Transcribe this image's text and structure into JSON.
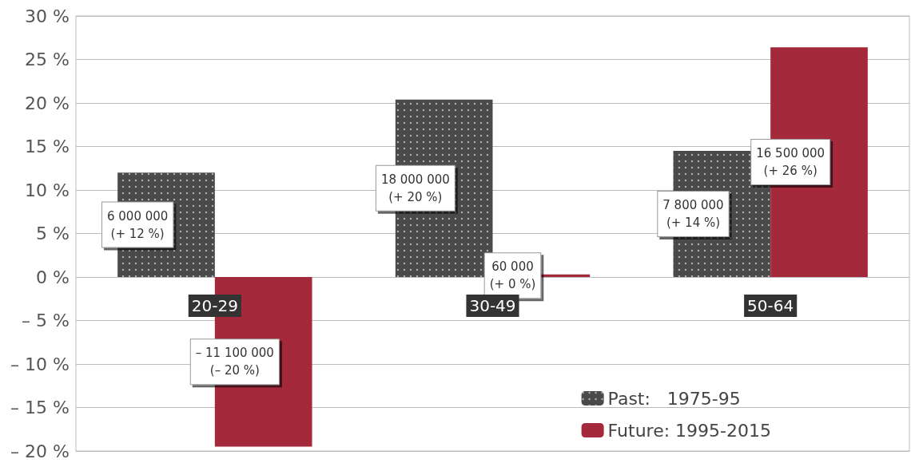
{
  "chart_data": {
    "type": "bar",
    "categories": [
      "20-29",
      "30-49",
      "50-64"
    ],
    "series": [
      {
        "name": "Past:   1975-95",
        "color": "#4a4a4a",
        "values": [
          12,
          20.4,
          14.5
        ],
        "value_labels": [
          "6 000 000\n(+ 12 %)",
          "18 000 000\n(+ 20 %)",
          "7 800 000\n(+ 14 %)"
        ]
      },
      {
        "name": "Future: 1995-2015",
        "color": "#a3293b",
        "values": [
          -19.5,
          0.3,
          26.4
        ],
        "value_labels": [
          "– 11 100 000\n(– 20 %)",
          "60 000\n(+ 0 %)",
          "16 500 000\n(+ 26 %)"
        ]
      }
    ],
    "ylim": [
      -20,
      30
    ],
    "yticks": [
      {
        "value": -20,
        "label": "– 20 %"
      },
      {
        "value": -15,
        "label": "– 15 %"
      },
      {
        "value": -10,
        "label": "– 10 %"
      },
      {
        "value": -5,
        "label": "– 5 %"
      },
      {
        "value": 0,
        "label": "0 %"
      },
      {
        "value": 5,
        "label": "5 %"
      },
      {
        "value": 10,
        "label": "10 %"
      },
      {
        "value": 15,
        "label": "15 %"
      },
      {
        "value": 20,
        "label": "20 %"
      },
      {
        "value": 25,
        "label": "25 %"
      },
      {
        "value": 30,
        "label": "30 %"
      }
    ],
    "grid": "y",
    "legend": "bottom right"
  }
}
